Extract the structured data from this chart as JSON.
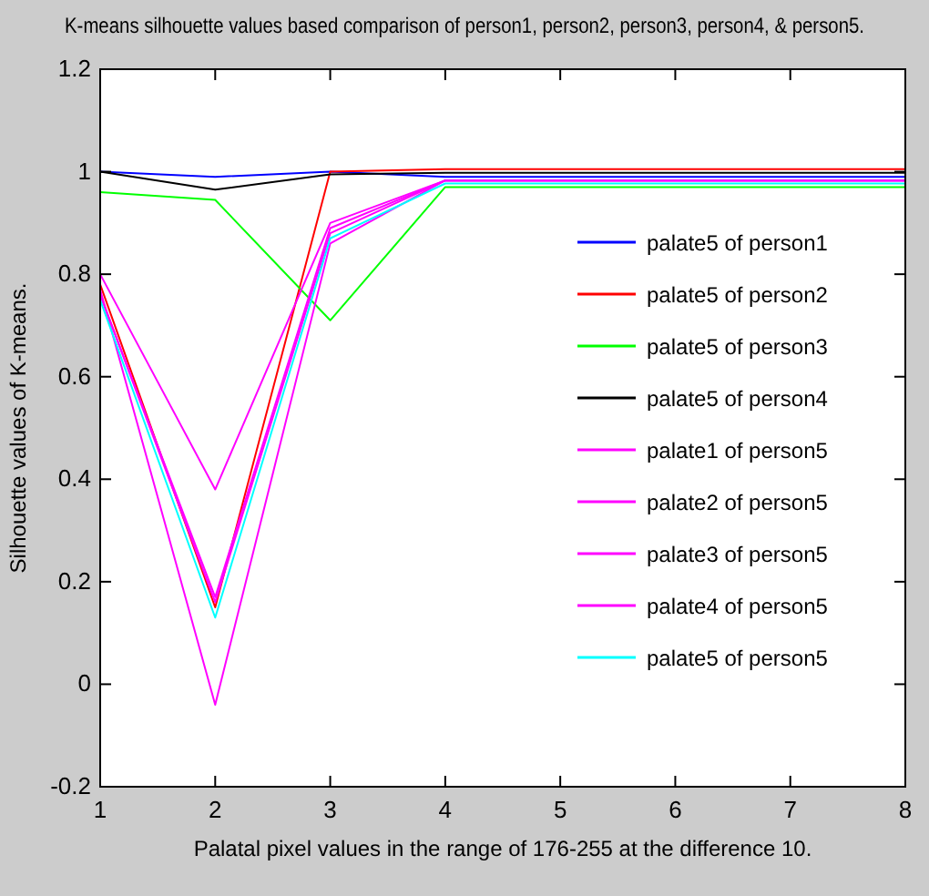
{
  "chart_data": {
    "type": "line",
    "title": "K-means silhouette values based comparison of person1, person2, person3, person4, & person5.",
    "xlabel": "Palatal pixel values in the range of 176-255 at the difference 10.",
    "ylabel": "Silhouette values of K-means.",
    "x": [
      1,
      2,
      3,
      4,
      5,
      6,
      7,
      8
    ],
    "xlim": [
      1,
      8
    ],
    "xticks": [
      1,
      2,
      3,
      4,
      5,
      6,
      7,
      8
    ],
    "ylim": [
      -0.2,
      1.2
    ],
    "yticks": [
      -0.2,
      0,
      0.2,
      0.4,
      0.6,
      0.8,
      1,
      1.2
    ],
    "grid": false,
    "legend": "right",
    "marker": "none",
    "line_style": "solid",
    "series": [
      {
        "name": "palate5 of person1",
        "color": "#0000ff",
        "values": [
          1,
          0.99,
          1,
          0.99,
          0.99,
          0.99,
          0.99,
          0.99
        ]
      },
      {
        "name": "palate5 of person2",
        "color": "#ff0000",
        "values": [
          0.78,
          0.15,
          1,
          1.005,
          1.005,
          1.005,
          1.005,
          1.005
        ]
      },
      {
        "name": "palate5 of person3",
        "color": "#00ff00",
        "values": [
          0.96,
          0.945,
          0.71,
          0.97,
          0.97,
          0.97,
          0.97,
          0.97
        ]
      },
      {
        "name": "palate5 of person4",
        "color": "#000000",
        "values": [
          1,
          0.965,
          0.995,
          0.998,
          0.998,
          0.998,
          0.998,
          0.998
        ]
      },
      {
        "name": "palate1 of person5",
        "color": "#ff00ff",
        "values": [
          0.8,
          0.38,
          0.9,
          0.983,
          0.983,
          0.983,
          0.983,
          0.983
        ]
      },
      {
        "name": "palate2 of person5",
        "color": "#ff00ff",
        "values": [
          0.76,
          0.17,
          0.89,
          0.983,
          0.983,
          0.983,
          0.983,
          0.983
        ]
      },
      {
        "name": "palate3 of person5",
        "color": "#ff00ff",
        "values": [
          0.77,
          -0.04,
          0.86,
          0.983,
          0.983,
          0.983,
          0.983,
          0.983
        ]
      },
      {
        "name": "palate4 of person5",
        "color": "#ff00ff",
        "values": [
          0.76,
          0.16,
          0.88,
          0.983,
          0.983,
          0.983,
          0.983,
          0.983
        ]
      },
      {
        "name": "palate5 of person5",
        "color": "#00ffff",
        "values": [
          0.75,
          0.13,
          0.87,
          0.977,
          0.977,
          0.977,
          0.977,
          0.977
        ]
      }
    ]
  }
}
